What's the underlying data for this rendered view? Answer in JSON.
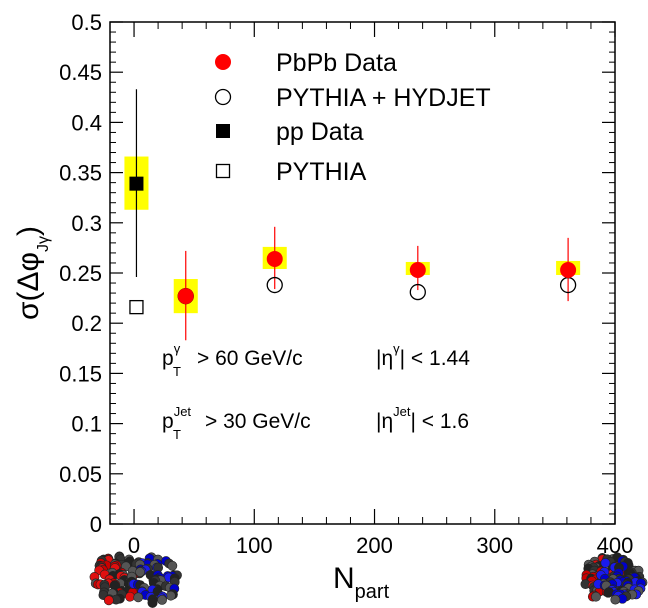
{
  "chart_data": {
    "type": "scatter",
    "xlabel": "N",
    "xlabel_sub": "part",
    "ylabel_sigma": "σ(Δφ",
    "ylabel_sub": "Jγ",
    "ylabel_close": ")",
    "xlim": [
      -20,
      400
    ],
    "ylim": [
      0,
      0.5
    ],
    "xticks": [
      "0",
      "100",
      "200",
      "300",
      "400"
    ],
    "xtick_values": [
      0,
      100,
      200,
      300,
      400
    ],
    "yticks": [
      "0",
      "0.05",
      "0.1",
      "0.15",
      "0.2",
      "0.25",
      "0.3",
      "0.35",
      "0.4",
      "0.45",
      "0.5"
    ],
    "ytick_values": [
      0,
      0.05,
      0.1,
      0.15,
      0.2,
      0.25,
      0.3,
      0.35,
      0.4,
      0.45,
      0.5
    ],
    "grid": false,
    "legend_position": "top-center",
    "series": [
      {
        "name": "PbPb Data",
        "marker": "filled-circle",
        "color": "#ff0000",
        "points": [
          {
            "x": 43,
            "y": 0.227,
            "stat_lo": 0.183,
            "stat_hi": 0.272,
            "sys_lo": 0.21,
            "sys_hi": 0.244,
            "sys_dx": 10
          },
          {
            "x": 117,
            "y": 0.264,
            "stat_lo": 0.234,
            "stat_hi": 0.296,
            "sys_lo": 0.254,
            "sys_hi": 0.276,
            "sys_dx": 10
          },
          {
            "x": 236,
            "y": 0.253,
            "stat_lo": 0.233,
            "stat_hi": 0.277,
            "sys_lo": 0.248,
            "sys_hi": 0.261,
            "sys_dx": 10
          },
          {
            "x": 361,
            "y": 0.253,
            "stat_lo": 0.222,
            "stat_hi": 0.285,
            "sys_lo": 0.248,
            "sys_hi": 0.262,
            "sys_dx": 10
          }
        ]
      },
      {
        "name": "PYTHIA + HYDJET",
        "marker": "open-circle",
        "color": "#000000",
        "points": [
          {
            "x": 43,
            "y": 0.227
          },
          {
            "x": 117,
            "y": 0.238
          },
          {
            "x": 236,
            "y": 0.231
          },
          {
            "x": 361,
            "y": 0.238
          }
        ]
      },
      {
        "name": "pp Data",
        "marker": "filled-square",
        "color": "#000000",
        "points": [
          {
            "x": 2,
            "y": 0.339,
            "stat_lo": 0.246,
            "stat_hi": 0.433,
            "sys_lo": 0.313,
            "sys_hi": 0.366,
            "sys_dx": 10
          }
        ]
      },
      {
        "name": "PYTHIA",
        "marker": "open-square",
        "color": "#000000",
        "points": [
          {
            "x": 2,
            "y": 0.216
          }
        ]
      }
    ],
    "sys_band_color": "#ffff00",
    "annotations": {
      "line1_pt": "p",
      "line1_pt_sup": "γ",
      "line1_pt_sub": "T",
      "line1_cut": "> 60 GeV/c",
      "line1_eta_open": "|η",
      "line1_eta_sup": "γ",
      "line1_eta_cut": "| < 1.44",
      "line2_pt": "p",
      "line2_pt_sup": "Jet",
      "line2_pt_sub": "T",
      "line2_cut": "> 30 GeV/c",
      "line2_eta_open": "|η",
      "line2_eta_sup": "Jet",
      "line2_eta_cut": "| < 1.6"
    }
  },
  "icons": {
    "left": "peripheral-collision-nuclei-icon",
    "right": "central-collision-nuclei-icon"
  }
}
